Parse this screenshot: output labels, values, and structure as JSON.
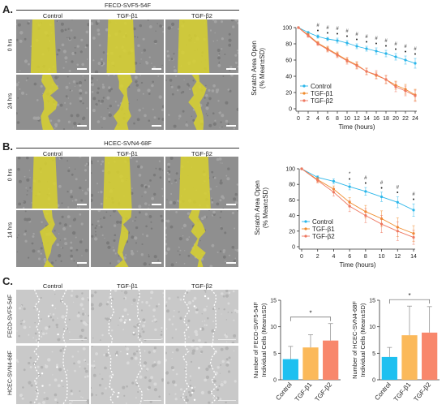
{
  "colors": {
    "control": "#2ab6ea",
    "tgf1": "#f08a2a",
    "tgf2": "#ee7760",
    "bar_control": "#1ec0f0",
    "bar_tgf1": "#fbb95a",
    "bar_tgf2": "#f8876c",
    "overlay": "#d9d22e"
  },
  "panelA": {
    "letter": "A.",
    "cell_line": "FECD-SVF5-54F",
    "columns": [
      "Control",
      "TGF-β1",
      "TGF-β2"
    ],
    "rows": [
      "0 hrs",
      "24 hrs"
    ]
  },
  "panelB": {
    "letter": "B.",
    "cell_line": "HCEC-SVN4-68F",
    "columns": [
      "Control",
      "TGF-β1",
      "TGF-β2"
    ],
    "rows": [
      "0 hrs",
      "14 hrs"
    ]
  },
  "panelC": {
    "letter": "C.",
    "columns": [
      "Control",
      "TGF-β1",
      "TGF-β2"
    ],
    "rows": [
      "FECD-SVF5-54F",
      "HCEC-SVN4-68F"
    ]
  },
  "chart_data": [
    {
      "type": "line",
      "ylabel_line1": "Scratch Area Open",
      "ylabel_line2": "(% Mean±SD)",
      "xlabel": "Time (hours)",
      "x": [
        0,
        2,
        4,
        6,
        8,
        10,
        12,
        14,
        16,
        18,
        20,
        22,
        24
      ],
      "xticks": [
        "0",
        "2",
        "4",
        "6",
        "8",
        "10",
        "12",
        "14",
        "16",
        "18",
        "20",
        "22",
        "24"
      ],
      "yticks": [
        "0",
        "20",
        "40",
        "60",
        "80",
        "100"
      ],
      "ylim": [
        0,
        100
      ],
      "series": [
        {
          "name": "Control",
          "values": [
            100,
            94,
            89,
            86,
            84,
            81,
            77,
            74,
            71,
            68,
            64,
            60,
            56
          ],
          "err": [
            0,
            1,
            2,
            2,
            3,
            3,
            3,
            3,
            4,
            4,
            4,
            5,
            6
          ]
        },
        {
          "name": "TGF-β1",
          "values": [
            100,
            91,
            81,
            74,
            67,
            60,
            54,
            46,
            41,
            36,
            29,
            24,
            17
          ],
          "err": [
            0,
            2,
            2,
            3,
            3,
            3,
            4,
            4,
            4,
            5,
            5,
            6,
            7
          ]
        },
        {
          "name": "TGF-β2",
          "values": [
            100,
            90,
            80,
            73,
            66,
            59,
            53,
            46,
            42,
            36,
            27,
            22,
            16
          ],
          "err": [
            0,
            2,
            2,
            3,
            3,
            4,
            4,
            4,
            5,
            5,
            6,
            6,
            7
          ]
        }
      ],
      "sig_marks": [
        "#",
        "#",
        "#",
        "#",
        "#",
        "#",
        "#",
        "#",
        "#",
        "#",
        "#"
      ],
      "legend": "bottom-left"
    },
    {
      "type": "line",
      "ylabel_line1": "Scratch Area Open",
      "ylabel_line2": "(% Mean±SD)",
      "xlabel": "Time (hours)",
      "x": [
        0,
        2,
        4,
        6,
        8,
        10,
        12,
        14
      ],
      "xticks": [
        "0",
        "2",
        "4",
        "6",
        "8",
        "10",
        "12",
        "14"
      ],
      "yticks": [
        "0",
        "20",
        "40",
        "60",
        "80",
        "100"
      ],
      "ylim": [
        0,
        100
      ],
      "series": [
        {
          "name": "Control",
          "values": [
            100,
            89,
            84,
            77,
            71,
            64,
            57,
            47
          ],
          "err": [
            0,
            2,
            3,
            4,
            5,
            6,
            7,
            8
          ]
        },
        {
          "name": "TGF-β1",
          "values": [
            100,
            86,
            74,
            57,
            45,
            36,
            25,
            17
          ],
          "err": [
            0,
            3,
            4,
            6,
            8,
            10,
            12,
            10
          ]
        },
        {
          "name": "TGF-β2",
          "values": [
            100,
            85,
            70,
            52,
            40,
            29,
            20,
            12
          ],
          "err": [
            0,
            3,
            5,
            7,
            9,
            11,
            12,
            9
          ]
        }
      ],
      "sig_marks": [
        "*",
        "#",
        "#",
        "#",
        "#"
      ],
      "legend": "bottom-left"
    },
    {
      "type": "bar",
      "ylabel_line1": "Number of FECD-SVF5-54F",
      "ylabel_line2": "Individual Cells (Mean±SD)",
      "categories": [
        "Control",
        "TGF-β1",
        "TGF-β2"
      ],
      "values": [
        3.9,
        6.1,
        7.4
      ],
      "err": [
        2.4,
        2.4,
        3.2
      ],
      "yticks": [
        "0",
        "5",
        "10",
        "15"
      ],
      "ylim": [
        0,
        15
      ],
      "sig": "*"
    },
    {
      "type": "bar",
      "ylabel_line1": "Number of HCEC-SVN4-68F",
      "ylabel_line2": "Individual Cells (Mean±SD)",
      "categories": [
        "Control",
        "TGF-β1",
        "TGF-β2"
      ],
      "values": [
        4.3,
        8.4,
        8.9
      ],
      "err": [
        1.8,
        5.5,
        4.9
      ],
      "yticks": [
        "0",
        "5",
        "10",
        "15"
      ],
      "ylim": [
        0,
        15
      ],
      "sig": "*"
    }
  ]
}
